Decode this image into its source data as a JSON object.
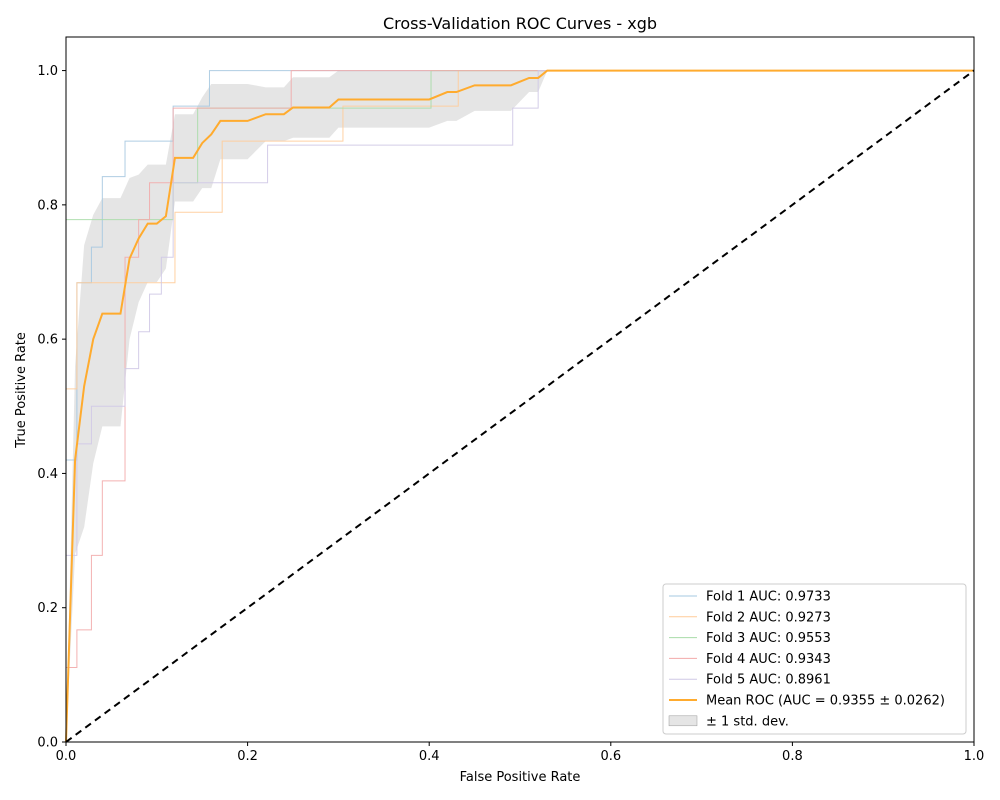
{
  "chart_data": {
    "type": "line",
    "title": "Cross-Validation ROC Curves - xgb",
    "xlabel": "False Positive Rate",
    "ylabel": "True Positive Rate",
    "xlim": [
      0,
      1
    ],
    "ylim": [
      0,
      1.05
    ],
    "x_ticks": [
      "0.0",
      "0.2",
      "0.4",
      "0.6",
      "0.8",
      "1.0"
    ],
    "y_ticks": [
      "0.0",
      "0.2",
      "0.4",
      "0.6",
      "0.8",
      "1.0"
    ],
    "x_tick_values": [
      0,
      0.2,
      0.4,
      0.6,
      0.8,
      1.0
    ],
    "y_tick_values": [
      0,
      0.2,
      0.4,
      0.6,
      0.8,
      1.0
    ],
    "grid": false,
    "legend_position": "lower-right",
    "series": [
      {
        "name": "Fold 1 AUC: 0.9733",
        "color": "#a6c8e0",
        "x": [
          0,
          0,
          0.012,
          0.012,
          0.028,
          0.028,
          0.04,
          0.04,
          0.065,
          0.065,
          0.118,
          0.118,
          0.145,
          0.145,
          0.158,
          0.158,
          1.0
        ],
        "y": [
          0,
          0.42,
          0.42,
          0.684,
          0.684,
          0.737,
          0.737,
          0.842,
          0.842,
          0.895,
          0.895,
          0.947,
          0.947,
          0.947,
          0.947,
          1.0,
          1.0
        ]
      },
      {
        "name": "Fold 2 AUC: 0.9273",
        "color": "#ffcc99",
        "x": [
          0,
          0,
          0.012,
          0.012,
          0.025,
          0.025,
          0.12,
          0.12,
          0.172,
          0.172,
          0.305,
          0.305,
          0.432,
          0.432,
          1.0
        ],
        "y": [
          0,
          0.526,
          0.526,
          0.684,
          0.684,
          0.684,
          0.684,
          0.789,
          0.789,
          0.895,
          0.895,
          0.947,
          0.947,
          1.0,
          1.0
        ]
      },
      {
        "name": "Fold 3 AUC: 0.9553",
        "color": "#a8dba8",
        "x": [
          0,
          0,
          0.118,
          0.118,
          0.145,
          0.145,
          0.402,
          0.402,
          1.0
        ],
        "y": [
          0,
          0.778,
          0.778,
          0.833,
          0.833,
          0.944,
          0.944,
          1.0,
          1.0
        ]
      },
      {
        "name": "Fold 4 AUC: 0.9343",
        "color": "#f2aaaa",
        "x": [
          0,
          0,
          0.012,
          0.012,
          0.028,
          0.028,
          0.04,
          0.04,
          0.065,
          0.065,
          0.08,
          0.08,
          0.092,
          0.092,
          0.118,
          0.118,
          0.248,
          0.248,
          1.0
        ],
        "y": [
          0,
          0.111,
          0.111,
          0.167,
          0.167,
          0.278,
          0.278,
          0.389,
          0.389,
          0.722,
          0.722,
          0.778,
          0.778,
          0.833,
          0.833,
          0.944,
          0.944,
          1.0,
          1.0
        ]
      },
      {
        "name": "Fold 5 AUC: 0.8961",
        "color": "#cfc8e6",
        "x": [
          0,
          0,
          0.012,
          0.012,
          0.028,
          0.028,
          0.065,
          0.065,
          0.08,
          0.08,
          0.092,
          0.092,
          0.105,
          0.105,
          0.118,
          0.118,
          0.222,
          0.222,
          0.492,
          0.492,
          0.52,
          0.52,
          1.0
        ],
        "y": [
          0,
          0.278,
          0.278,
          0.444,
          0.444,
          0.5,
          0.5,
          0.556,
          0.556,
          0.611,
          0.611,
          0.667,
          0.667,
          0.722,
          0.722,
          0.833,
          0.833,
          0.889,
          0.889,
          0.944,
          0.944,
          1.0,
          1.0
        ]
      },
      {
        "name": "Mean ROC (AUC = 0.9355 ± 0.0262)",
        "color": "#ffab2e",
        "x": [
          0,
          0.01,
          0.02,
          0.03,
          0.04,
          0.05,
          0.06,
          0.07,
          0.08,
          0.09,
          0.1,
          0.11,
          0.12,
          0.13,
          0.14,
          0.15,
          0.16,
          0.17,
          0.18,
          0.2,
          0.22,
          0.24,
          0.25,
          0.27,
          0.29,
          0.3,
          0.33,
          0.36,
          0.4,
          0.42,
          0.43,
          0.45,
          0.48,
          0.49,
          0.51,
          0.52,
          0.53,
          0.6,
          0.7,
          0.8,
          0.9,
          1.0
        ],
        "y": [
          0,
          0.42,
          0.53,
          0.6,
          0.638,
          0.638,
          0.638,
          0.72,
          0.75,
          0.772,
          0.772,
          0.783,
          0.87,
          0.87,
          0.87,
          0.892,
          0.905,
          0.925,
          0.925,
          0.925,
          0.935,
          0.935,
          0.945,
          0.945,
          0.945,
          0.957,
          0.957,
          0.957,
          0.957,
          0.968,
          0.968,
          0.978,
          0.978,
          0.978,
          0.989,
          0.989,
          1.0,
          1.0,
          1.0,
          1.0,
          1.0,
          1.0
        ]
      }
    ],
    "std_band": {
      "name": "± 1 std. dev.",
      "color": "#cccccc",
      "x": [
        0,
        0.01,
        0.02,
        0.03,
        0.04,
        0.05,
        0.06,
        0.07,
        0.08,
        0.09,
        0.1,
        0.11,
        0.12,
        0.13,
        0.14,
        0.15,
        0.16,
        0.17,
        0.18,
        0.2,
        0.22,
        0.24,
        0.25,
        0.27,
        0.29,
        0.3,
        0.33,
        0.36,
        0.4,
        0.42,
        0.43,
        0.45,
        0.48,
        0.49,
        0.51,
        0.52,
        0.53,
        1.0
      ],
      "upper": [
        0,
        0.56,
        0.74,
        0.785,
        0.81,
        0.81,
        0.81,
        0.84,
        0.845,
        0.86,
        0.86,
        0.86,
        0.935,
        0.935,
        0.935,
        0.96,
        0.98,
        0.98,
        0.98,
        0.98,
        0.975,
        0.975,
        0.99,
        0.99,
        0.99,
        1.0,
        1.0,
        1.0,
        1.0,
        1.0,
        1.0,
        1.0,
        1.0,
        1.0,
        1.0,
        1.0,
        1.0,
        1.0
      ],
      "lower": [
        0,
        0.28,
        0.32,
        0.415,
        0.47,
        0.47,
        0.47,
        0.6,
        0.655,
        0.685,
        0.685,
        0.705,
        0.805,
        0.805,
        0.805,
        0.825,
        0.825,
        0.868,
        0.868,
        0.868,
        0.895,
        0.895,
        0.9,
        0.9,
        0.9,
        0.915,
        0.915,
        0.915,
        0.915,
        0.925,
        0.925,
        0.94,
        0.94,
        0.94,
        0.968,
        0.968,
        1.0,
        1.0
      ]
    },
    "chance_line": {
      "color": "#000000",
      "x": [
        0,
        1
      ],
      "y": [
        0,
        1
      ]
    }
  }
}
